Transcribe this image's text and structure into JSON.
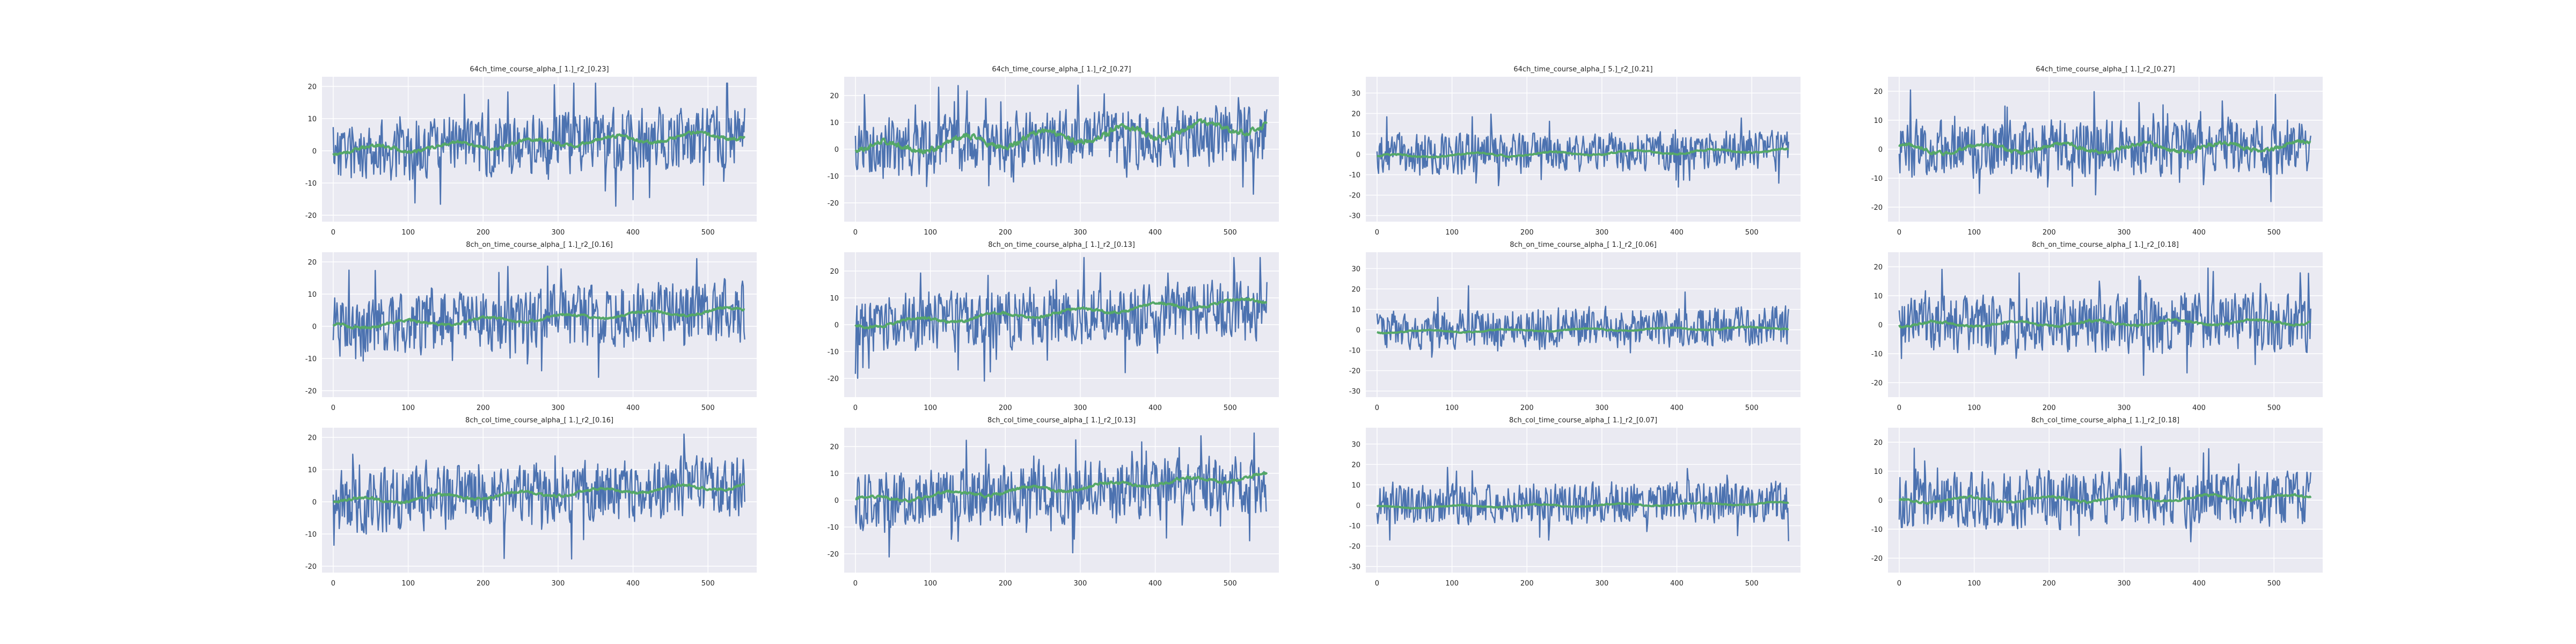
{
  "figure": {
    "layout": {
      "rows": 3,
      "cols": 4
    },
    "colors": {
      "background": "#eaeaf2",
      "grid": "#ffffff",
      "signal": "#4c72b0",
      "fit": "#55a868",
      "text": "#262626"
    }
  },
  "chart_data": [
    {
      "type": "line",
      "title": "64ch_time_course_alpha_[ 1.]_r2_[0.23]",
      "xlim": [
        -15,
        565
      ],
      "ylim": [
        -22,
        23
      ],
      "xticks": [
        0,
        100,
        200,
        300,
        400,
        500
      ],
      "yticks": [
        -20,
        -10,
        0,
        10,
        20
      ],
      "grid": true,
      "series": [
        {
          "n": 550,
          "mean_start": 0,
          "mean_end": 5,
          "noise_amp": 7,
          "fit_start": 0,
          "fit_end": 5,
          "fit_wiggle": 2,
          "seed": 11
        }
      ]
    },
    {
      "type": "line",
      "title": "64ch_time_course_alpha_[ 1.]_r2_[0.27]",
      "xlim": [
        -15,
        565
      ],
      "ylim": [
        -27,
        27
      ],
      "xticks": [
        0,
        100,
        200,
        300,
        400,
        500
      ],
      "yticks": [
        -20,
        -10,
        0,
        10,
        20
      ],
      "grid": true,
      "series": [
        {
          "n": 550,
          "mean_start": 0,
          "mean_end": 6,
          "noise_amp": 8,
          "fit_start": 0,
          "fit_end": 9,
          "fit_wiggle": 4,
          "seed": 12
        }
      ]
    },
    {
      "type": "line",
      "title": "64ch_time_course_alpha_[ 5.]_r2_[0.21]",
      "xlim": [
        -15,
        565
      ],
      "ylim": [
        -33,
        38
      ],
      "xticks": [
        0,
        100,
        200,
        300,
        400,
        500
      ],
      "yticks": [
        -30,
        -20,
        -10,
        0,
        10,
        20,
        30
      ],
      "grid": true,
      "series": [
        {
          "n": 550,
          "mean_start": 0,
          "mean_end": 2,
          "noise_amp": 7,
          "fit_start": -1,
          "fit_end": 2,
          "fit_wiggle": 1.5,
          "seed": 13
        }
      ]
    },
    {
      "type": "line",
      "title": "64ch_time_course_alpha_[ 1.]_r2_[0.27]",
      "xlim": [
        -15,
        565
      ],
      "ylim": [
        -25,
        25
      ],
      "xticks": [
        0,
        100,
        200,
        300,
        400,
        500
      ],
      "yticks": [
        -20,
        -10,
        0,
        10,
        20
      ],
      "grid": true,
      "series": [
        {
          "n": 550,
          "mean_start": 0,
          "mean_end": 1,
          "noise_amp": 7,
          "fit_start": 0,
          "fit_end": 1,
          "fit_wiggle": 2.5,
          "seed": 14
        }
      ]
    },
    {
      "type": "line",
      "title": "8ch_on_time_course_alpha_[ 1.]_r2_[0.16]",
      "xlim": [
        -15,
        565
      ],
      "ylim": [
        -22,
        23
      ],
      "xticks": [
        0,
        100,
        200,
        300,
        400,
        500
      ],
      "yticks": [
        -20,
        -10,
        0,
        10,
        20
      ],
      "grid": true,
      "series": [
        {
          "n": 550,
          "mean_start": 0,
          "mean_end": 5,
          "noise_amp": 7,
          "fit_start": 0,
          "fit_end": 5,
          "fit_wiggle": 1.5,
          "seed": 21
        }
      ]
    },
    {
      "type": "line",
      "title": "8ch_on_time_course_alpha_[ 1.]_r2_[0.13]",
      "xlim": [
        -15,
        565
      ],
      "ylim": [
        -27,
        27
      ],
      "xticks": [
        0,
        100,
        200,
        300,
        400,
        500
      ],
      "yticks": [
        -20,
        -10,
        0,
        10,
        20
      ],
      "grid": true,
      "series": [
        {
          "n": 550,
          "mean_start": 0,
          "mean_end": 6,
          "noise_amp": 8,
          "fit_start": 0,
          "fit_end": 9,
          "fit_wiggle": 2,
          "seed": 22
        }
      ]
    },
    {
      "type": "line",
      "title": "8ch_on_time_course_alpha_[ 1.]_r2_[0.06]",
      "xlim": [
        -15,
        565
      ],
      "ylim": [
        -33,
        38
      ],
      "xticks": [
        0,
        100,
        200,
        300,
        400,
        500
      ],
      "yticks": [
        -30,
        -20,
        -10,
        0,
        10,
        20,
        30
      ],
      "grid": true,
      "series": [
        {
          "n": 550,
          "mean_start": 0,
          "mean_end": 2,
          "noise_amp": 7,
          "fit_start": -1,
          "fit_end": 1,
          "fit_wiggle": 1,
          "seed": 23
        }
      ]
    },
    {
      "type": "line",
      "title": "8ch_on_time_course_alpha_[ 1.]_r2_[0.18]",
      "xlim": [
        -15,
        565
      ],
      "ylim": [
        -25,
        25
      ],
      "xticks": [
        0,
        100,
        200,
        300,
        400,
        500
      ],
      "yticks": [
        -20,
        -10,
        0,
        10,
        20
      ],
      "grid": true,
      "series": [
        {
          "n": 550,
          "mean_start": 0,
          "mean_end": 1,
          "noise_amp": 7,
          "fit_start": 0,
          "fit_end": 1,
          "fit_wiggle": 1.5,
          "seed": 24
        }
      ]
    },
    {
      "type": "line",
      "title": "8ch_col_time_course_alpha_[ 1.]_r2_[0.16]",
      "xlim": [
        -15,
        565
      ],
      "ylim": [
        -22,
        23
      ],
      "xticks": [
        0,
        100,
        200,
        300,
        400,
        500
      ],
      "yticks": [
        -20,
        -10,
        0,
        10,
        20
      ],
      "grid": true,
      "series": [
        {
          "n": 550,
          "mean_start": 0,
          "mean_end": 5,
          "noise_amp": 7,
          "fit_start": 0,
          "fit_end": 5,
          "fit_wiggle": 1.5,
          "seed": 31
        }
      ]
    },
    {
      "type": "line",
      "title": "8ch_col_time_course_alpha_[ 1.]_r2_[0.13]",
      "xlim": [
        -15,
        565
      ],
      "ylim": [
        -27,
        27
      ],
      "xticks": [
        0,
        100,
        200,
        300,
        400,
        500
      ],
      "yticks": [
        -20,
        -10,
        0,
        10,
        20
      ],
      "grid": true,
      "series": [
        {
          "n": 550,
          "mean_start": 0,
          "mean_end": 6,
          "noise_amp": 8,
          "fit_start": 0,
          "fit_end": 9,
          "fit_wiggle": 2,
          "seed": 32
        }
      ]
    },
    {
      "type": "line",
      "title": "8ch_col_time_course_alpha_[ 1.]_r2_[0.07]",
      "xlim": [
        -15,
        565
      ],
      "ylim": [
        -33,
        38
      ],
      "xticks": [
        0,
        100,
        200,
        300,
        400,
        500
      ],
      "yticks": [
        -30,
        -20,
        -10,
        0,
        10,
        20,
        30
      ],
      "grid": true,
      "series": [
        {
          "n": 550,
          "mean_start": 0,
          "mean_end": 2,
          "noise_amp": 7,
          "fit_start": -1,
          "fit_end": 1,
          "fit_wiggle": 1,
          "seed": 33
        }
      ]
    },
    {
      "type": "line",
      "title": "8ch_col_time_course_alpha_[ 1.]_r2_[0.18]",
      "xlim": [
        -15,
        565
      ],
      "ylim": [
        -25,
        25
      ],
      "xticks": [
        0,
        100,
        200,
        300,
        400,
        500
      ],
      "yticks": [
        -20,
        -10,
        0,
        10,
        20
      ],
      "grid": true,
      "series": [
        {
          "n": 550,
          "mean_start": 0,
          "mean_end": 1,
          "noise_amp": 7,
          "fit_start": 0,
          "fit_end": 1,
          "fit_wiggle": 1.5,
          "seed": 34
        }
      ]
    }
  ]
}
